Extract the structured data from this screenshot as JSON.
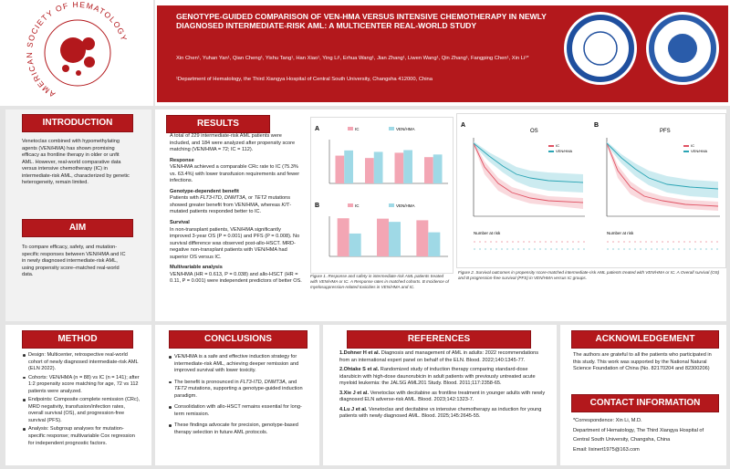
{
  "header": {
    "title": "GENOTYPE-GUIDED COMPARISON OF VEN-HMA VERSUS INTENSIVE CHEMOTHERAPY IN NEWLY DIAGNOSED INTERMEDIATE-RISK AML: A MULTICENTER REAL-WORLD STUDY",
    "authors": "Xin Chen¹, Yuhan Yan¹, Qian Cheng¹, Yishu Tang¹, Han Xiao¹, Ying Li¹, Erhua Wang¹, Jian Zhang¹, Liwen Wang¹, Qin Zhang¹, Fangping Chen¹, Xin Li¹*",
    "affiliation": "¹Department of Hematology, the Third Xiangya Hospital of Central South University, Changsha 412000, China",
    "society": "AMERICAN SOCIETY OF HEMATOLOGY"
  },
  "introduction": {
    "heading": "INTRODUCTION",
    "text": "Venetoclax combined with hypomethylating agents (VEN/HMA) has shown promising efficacy as frontline therapy in older or unfit AML. However, real-world comparative data versus intensive chemotherapy (IC) in intermediate-risk AML, characterized by genetic heterogeneity, remain limited."
  },
  "aim": {
    "heading": "AIM",
    "text": "To compare efficacy, safety, and mutation-specific responses between VEN/HMA and IC in newly diagnosed intermediate-risk AML, using propensity score–matched real-world data."
  },
  "results": {
    "heading": "RESULTS",
    "summary": "A total of 229 intermediate-risk AML patients were included, and 184 were analyzed after propensity score matching (VEN/HMA = 72; IC = 112).",
    "blocks": [
      {
        "heading": "Response",
        "runs": [
          "VEN/HMA achieved a comparable CRc rate to IC (75.3% vs. 63.4%) with lower transfusion requirements and fewer infections."
        ]
      },
      {
        "heading": "Genotype-dependent benefit",
        "runs": [
          "Patients with ",
          "FLT3-ITD, DNMT3A,",
          " or ",
          "TET2",
          " mutations showed greater benefit from VEN/HMA, whereas ",
          "KIT",
          "-mutated patients responded better to IC."
        ]
      },
      {
        "heading": "Survival",
        "runs": [
          "In non-transplant patients, VEN/HMA significantly improved 3-year OS (P = 0.001) and PFS (P = 0.008). No survival difference was observed post-allo-HSCT. MRD-negative non-transplant patients with VEN/HMA had superior OS versus IC."
        ]
      },
      {
        "heading": "Multivariable analysis",
        "runs": [
          "VEN/HMA (HR = 0.613, P = 0.038) and allo-HSCT (HR = 0.11, P = 0.001) were independent predictors of better OS."
        ]
      }
    ]
  },
  "figure1": {
    "caption": "Figure 1. Response and safety in intermediate-risk AML patients treated with VEN/HMA or IC. A Response rates in matched cohorts. B Incidence of myelosuppression-related toxicities in VEN/HMA and IC.",
    "panel_a": {
      "label": "A",
      "ylim": [
        0,
        100
      ],
      "series": [
        {
          "name": "IC",
          "color": "#f3a6b4",
          "values": [
            63.4,
            58,
            70,
            60
          ]
        },
        {
          "name": "VEN/HMA",
          "color": "#9fd9e6",
          "values": [
            75.3,
            72,
            76,
            66
          ]
        }
      ]
    },
    "panel_b": {
      "label": "B",
      "ylim": [
        0,
        100
      ],
      "series": [
        {
          "name": "IC",
          "color": "#f3a6b4",
          "values": [
            95,
            94,
            90
          ]
        },
        {
          "name": "VEN/HMA",
          "color": "#9fd9e6",
          "values": [
            57,
            86,
            60
          ]
        }
      ]
    }
  },
  "figure2": {
    "caption": "Figure 2. Survival outcomes in propensity score-matched intermediate-risk AML patients treated with VEN/HMA or IC. A Overall survival (OS) and B progression-free survival (PFS) in VEN/HMA versus IC groups.",
    "panel_a": {
      "label": "A",
      "title": "OS"
    },
    "panel_b": {
      "label": "B",
      "title": "PFS"
    },
    "legend": [
      "IC",
      "VEN/HMA"
    ],
    "risk_table": "Number at risk"
  },
  "method": {
    "heading": "METHOD",
    "items": [
      "Design: Multicenter, retrospective real-world cohort of newly diagnosed intermediate-risk AML (ELN 2022).",
      "Cohorts: VEN/HMA (n = 88) vs IC (n = 141); after 1:2 propensity score matching for age, 72 vs 112 patients were analyzed.",
      "Endpoints: Composite complete remission (CRc), MRD negativity, transfusion/infection rates, overall survival (OS), and progression-free survival (PFS).",
      "Analysis: Subgroup analyses for mutation-specific response; multivariable Cox regression for independent prognostic factors."
    ]
  },
  "conclusions": {
    "heading": "CONCLUSIONS",
    "items": [
      [
        "VEN/HMA is a safe and effective induction strategy for intermediate-risk AML, achieving deeper remission and improved survival with lower toxicity."
      ],
      [
        "The benefit is pronounced in ",
        "FLT3-ITD, DNMT3A,",
        " and ",
        "TET2",
        " mutations, supporting a genotype-guided induction paradigm."
      ],
      [
        "Consolidation with allo-HSCT remains essential for long-term remission."
      ],
      [
        "These findings advocate for precision, genotype-based therapy selection in future AML protocols."
      ]
    ]
  },
  "references": {
    "heading": "REFERENCES",
    "items": [
      {
        "author": "1.Dohner H et al.",
        "text": " Diagnosis and management of AML in adults: 2022 recommendations from an international expert panel on behalf of the ELN. Blood. 2022;140:1345-77."
      },
      {
        "author": "2.Ohtake S et al.",
        "text": " Randomized study of induction therapy comparing standard-dose idarubicin with high-dose daunorubicin in adult patients with previously untreated acute myeloid leukemia: the JALSG AML201 Study. Blood. 2011;117:2358-65."
      },
      {
        "author": "3.Xie J et al.",
        "text": " Venetoclax with decitabine as frontline treatment in younger adults with newly diagnosed ELN adverse-risk AML. Blood. 2023;142:1323-7."
      },
      {
        "author": "4.Lu J et al.",
        "text": " Venetoclax and decitabine vs intensive chemotherapy as induction for young patients with newly diagnosed AML. Blood. 2025;145:2645-55."
      }
    ]
  },
  "acknowledgement": {
    "heading": "ACKNOWLEDGEMENT",
    "text": "The authors are grateful to all the patients who participated in this study. This work was supported by the National Natural Science Foundation of China (No. 82170204 and 82300206)"
  },
  "contact": {
    "heading": "CONTACT INFORMATION",
    "lines": [
      "*Correspondence: Xin Li, M.D.",
      "Department of Hematology, The Third Xiangya Hospital of Central South University, Changsha, China",
      "Email: lixinert1975@163.com"
    ]
  }
}
